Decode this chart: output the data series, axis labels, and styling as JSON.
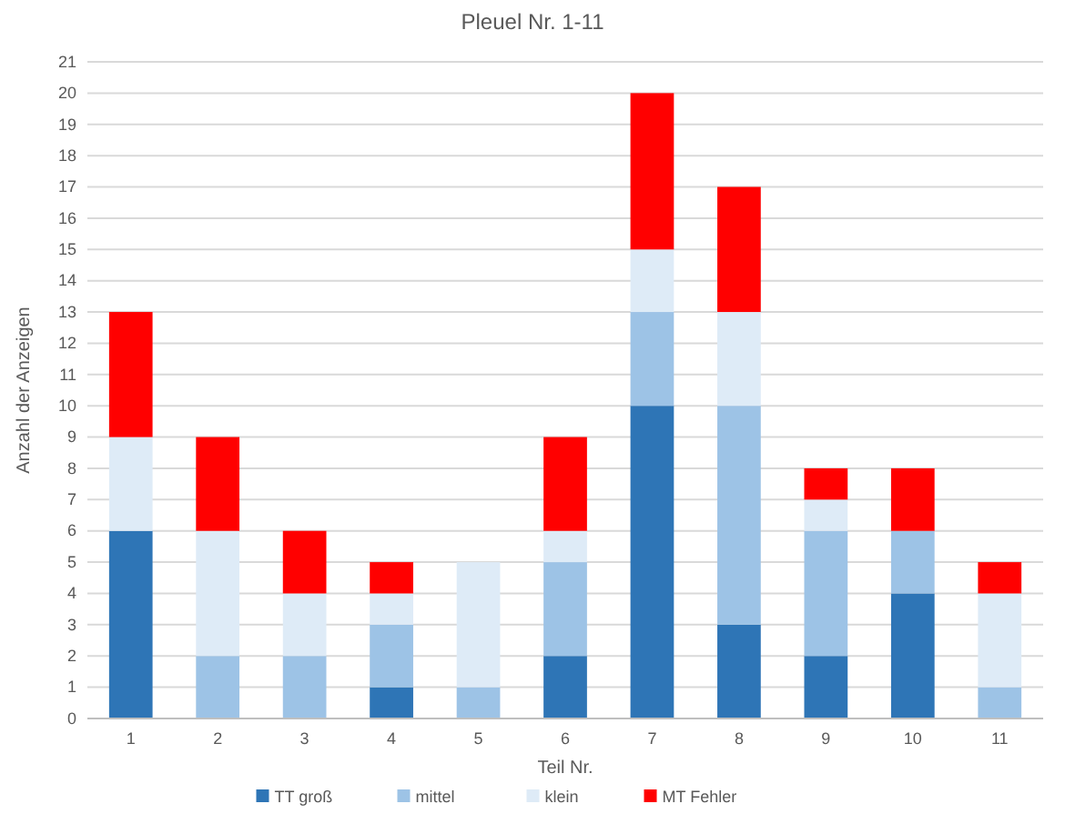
{
  "chart_data": {
    "type": "bar",
    "title": "Pleuel Nr. 1-11",
    "xlabel": "Teil Nr.",
    "ylabel": "Anzahl der Anzeigen",
    "categories": [
      "1",
      "2",
      "3",
      "4",
      "5",
      "6",
      "7",
      "8",
      "9",
      "10",
      "11"
    ],
    "stacked": true,
    "ylim": [
      0,
      21
    ],
    "yticks": [
      0,
      1,
      2,
      3,
      4,
      5,
      6,
      7,
      8,
      9,
      10,
      11,
      12,
      13,
      14,
      15,
      16,
      17,
      18,
      19,
      20,
      21
    ],
    "grid": "y",
    "legend": "bottom",
    "series": [
      {
        "name": "TT groß",
        "color": "#2e75b6",
        "values": [
          6,
          0,
          0,
          1,
          0,
          2,
          10,
          3,
          2,
          4,
          0
        ]
      },
      {
        "name": "mittel",
        "color": "#9dc3e6",
        "values": [
          0,
          2,
          2,
          2,
          1,
          3,
          3,
          7,
          4,
          2,
          1
        ]
      },
      {
        "name": "klein",
        "color": "#deebf7",
        "values": [
          3,
          4,
          2,
          1,
          4,
          1,
          2,
          3,
          1,
          0,
          3
        ]
      },
      {
        "name": "MT Fehler",
        "color": "#ff0000",
        "values": [
          4,
          3,
          2,
          1,
          0,
          3,
          5,
          4,
          1,
          2,
          1
        ]
      }
    ]
  }
}
